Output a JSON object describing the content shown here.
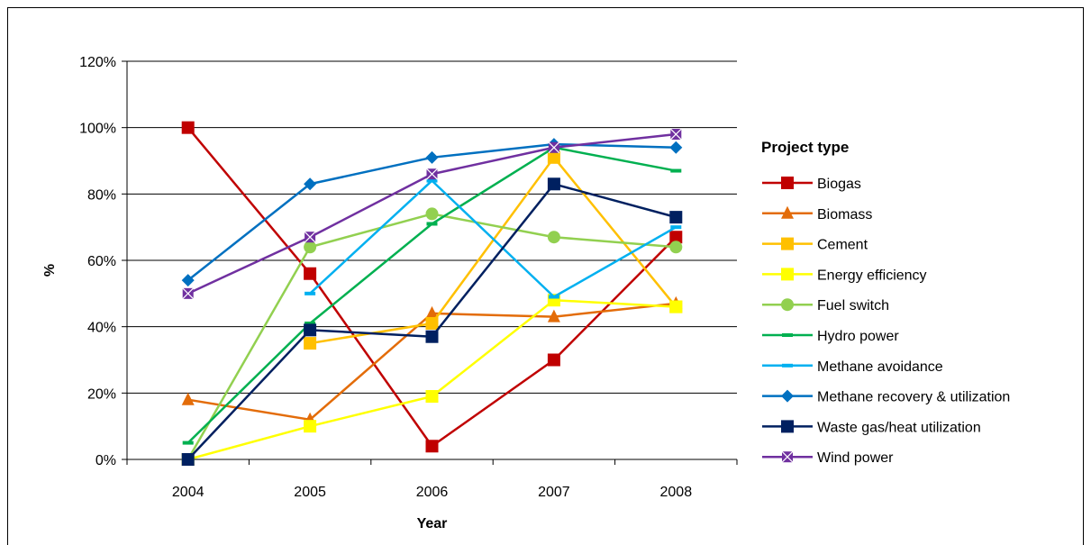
{
  "chart_data": {
    "type": "line",
    "title": "",
    "xlabel": "Year",
    "ylabel": "%",
    "categories": [
      "2004",
      "2005",
      "2006",
      "2007",
      "2008"
    ],
    "yticks": [
      "0%",
      "20%",
      "40%",
      "60%",
      "80%",
      "100%",
      "120%"
    ],
    "ylim": [
      0,
      120
    ],
    "grid": "horizontal",
    "legend_title": "Project type",
    "legend_position": "right",
    "series": [
      {
        "name": "Biogas",
        "values": [
          100,
          56,
          4,
          30,
          67
        ],
        "color": "#c00000",
        "marker": "square"
      },
      {
        "name": "Biomass",
        "values": [
          18,
          12,
          44,
          43,
          47
        ],
        "color": "#e36c09",
        "marker": "triangle"
      },
      {
        "name": "Cement",
        "values": [
          null,
          35,
          41,
          91,
          46
        ],
        "color": "#ffc000",
        "marker": "square"
      },
      {
        "name": "Energy efficiency",
        "values": [
          0,
          10,
          19,
          48,
          46
        ],
        "color": "#ffff00",
        "marker": "square"
      },
      {
        "name": "Fuel switch",
        "values": [
          0,
          64,
          74,
          67,
          64
        ],
        "color": "#92d050",
        "marker": "circle"
      },
      {
        "name": "Hydro power",
        "values": [
          5,
          41,
          71,
          94,
          87
        ],
        "color": "#00b050",
        "marker": "dash"
      },
      {
        "name": "Methane avoidance",
        "values": [
          null,
          50,
          84,
          49,
          70
        ],
        "color": "#00b0f0",
        "marker": "dash"
      },
      {
        "name": "Methane recovery & utilization",
        "values": [
          54,
          83,
          91,
          95,
          94
        ],
        "color": "#0070c0",
        "marker": "diamond"
      },
      {
        "name": "Waste gas/heat utilization",
        "values": [
          0,
          39,
          37,
          83,
          73
        ],
        "color": "#002060",
        "marker": "square"
      },
      {
        "name": "Wind power",
        "values": [
          50,
          67,
          86,
          94,
          98
        ],
        "color": "#7030a0",
        "marker": "star"
      }
    ]
  }
}
